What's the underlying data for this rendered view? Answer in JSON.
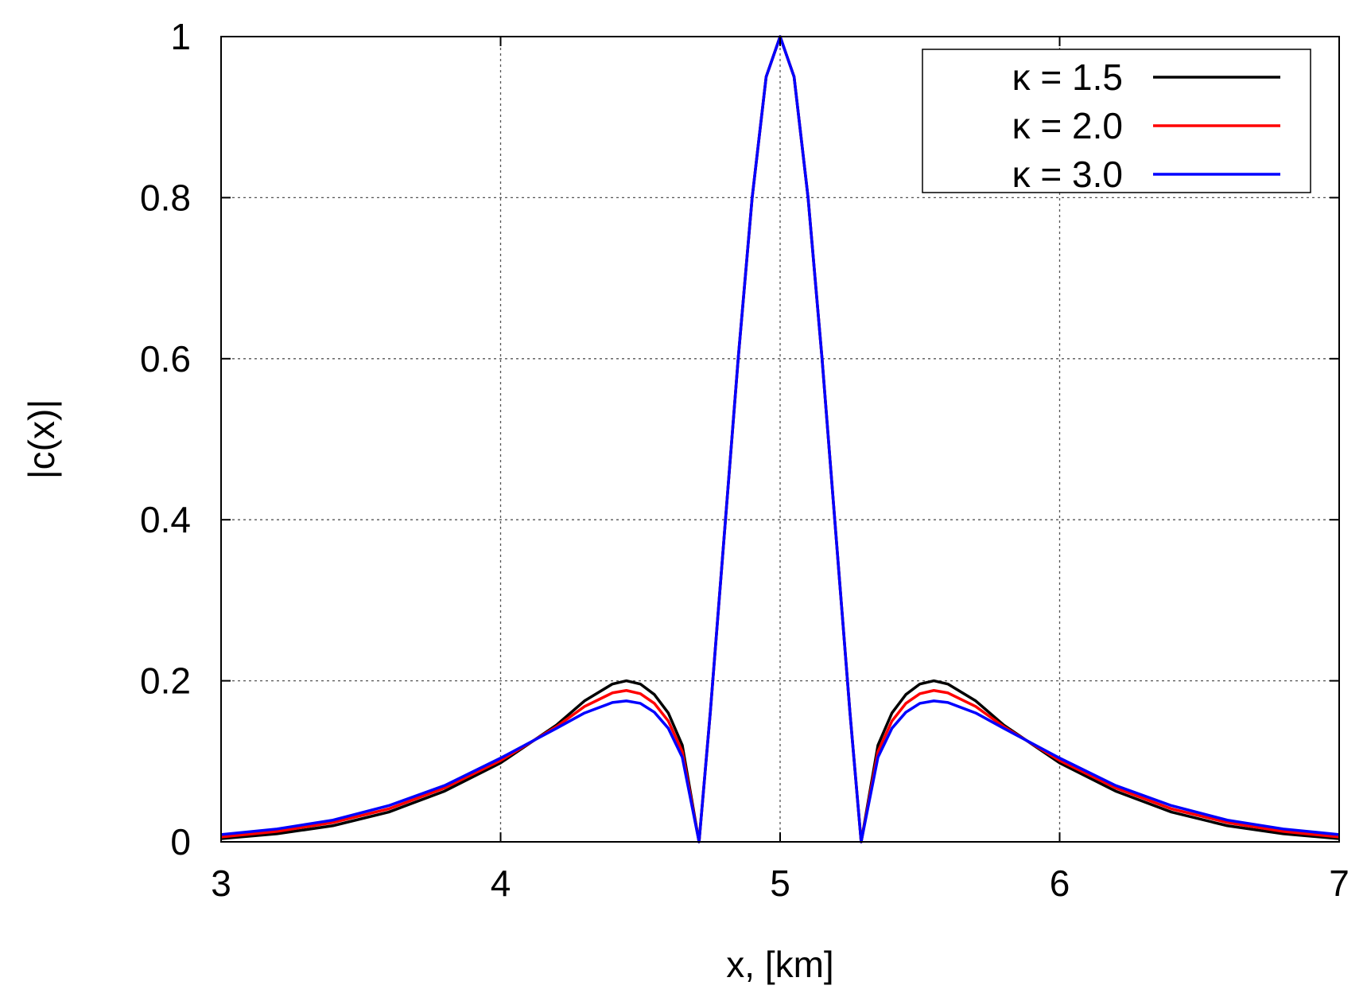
{
  "chart_data": {
    "type": "line",
    "title": "",
    "xlabel": "x, [km]",
    "ylabel": "|c(x)|",
    "xlim": [
      3,
      7
    ],
    "ylim": [
      0,
      1
    ],
    "xticks": [
      "3",
      "4",
      "5",
      "6",
      "7"
    ],
    "yticks": [
      "0",
      "0.2",
      "0.4",
      "0.6",
      "0.8",
      "1"
    ],
    "grid": true,
    "legend_position": "top-right",
    "x": [
      3.0,
      3.2,
      3.4,
      3.6,
      3.8,
      4.0,
      4.2,
      4.3,
      4.4,
      4.45,
      4.5,
      4.55,
      4.6,
      4.65,
      4.71,
      4.75,
      4.8,
      4.85,
      4.9,
      4.95,
      5.0,
      5.05,
      5.1,
      5.15,
      5.2,
      5.25,
      5.29,
      5.35,
      5.4,
      5.45,
      5.5,
      5.55,
      5.6,
      5.7,
      5.8,
      6.0,
      6.2,
      6.4,
      6.6,
      6.8,
      7.0
    ],
    "series": [
      {
        "name": "κ = 1.5",
        "color": "#000000",
        "values": [
          0.004,
          0.01,
          0.02,
          0.037,
          0.063,
          0.098,
          0.145,
          0.175,
          0.196,
          0.2,
          0.196,
          0.183,
          0.16,
          0.12,
          0.0,
          0.16,
          0.38,
          0.6,
          0.8,
          0.95,
          1.0,
          0.95,
          0.8,
          0.6,
          0.38,
          0.16,
          0.0,
          0.12,
          0.16,
          0.183,
          0.196,
          0.2,
          0.196,
          0.175,
          0.145,
          0.098,
          0.063,
          0.037,
          0.02,
          0.01,
          0.004
        ]
      },
      {
        "name": "κ = 2.0",
        "color": "#ff0000",
        "values": [
          0.006,
          0.013,
          0.024,
          0.041,
          0.067,
          0.101,
          0.143,
          0.168,
          0.185,
          0.188,
          0.184,
          0.172,
          0.15,
          0.112,
          0.0,
          0.16,
          0.38,
          0.6,
          0.8,
          0.95,
          1.0,
          0.95,
          0.8,
          0.6,
          0.38,
          0.16,
          0.0,
          0.112,
          0.15,
          0.172,
          0.184,
          0.188,
          0.185,
          0.168,
          0.143,
          0.101,
          0.067,
          0.041,
          0.024,
          0.013,
          0.006
        ]
      },
      {
        "name": "κ = 3.0",
        "color": "#0000ff",
        "values": [
          0.009,
          0.016,
          0.027,
          0.045,
          0.07,
          0.104,
          0.141,
          0.16,
          0.173,
          0.175,
          0.172,
          0.161,
          0.141,
          0.105,
          0.0,
          0.16,
          0.38,
          0.6,
          0.8,
          0.95,
          1.0,
          0.95,
          0.8,
          0.6,
          0.38,
          0.16,
          0.0,
          0.105,
          0.141,
          0.161,
          0.172,
          0.175,
          0.173,
          0.16,
          0.141,
          0.104,
          0.07,
          0.045,
          0.027,
          0.016,
          0.009
        ]
      }
    ]
  }
}
